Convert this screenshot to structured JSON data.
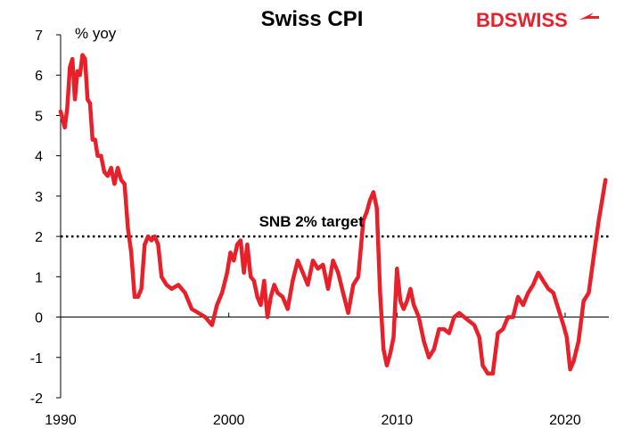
{
  "chart_data": {
    "type": "line",
    "title": "Swiss CPI",
    "ylabel": "% yoy",
    "xlabel": "",
    "xlim": [
      1990,
      2022.6
    ],
    "ylim": [
      -2,
      7
    ],
    "yticks": [
      -2,
      -1,
      0,
      1,
      2,
      3,
      4,
      5,
      6,
      7
    ],
    "xticks": [
      1990,
      2000,
      2010,
      2020
    ],
    "grid": false,
    "legend": "none",
    "annotations": [
      {
        "text": "SNB 2% target",
        "x": 2001.8,
        "y": 2.25
      }
    ],
    "reference_lines": [
      {
        "y": 2,
        "style": "dotted",
        "color": "#000000"
      }
    ],
    "series": [
      {
        "color": "#e8202a",
        "x": [
          1990.0,
          1990.25,
          1990.4,
          1990.55,
          1990.7,
          1990.85,
          1991.0,
          1991.15,
          1991.3,
          1991.45,
          1991.6,
          1991.75,
          1991.9,
          1992.05,
          1992.2,
          1992.4,
          1992.6,
          1992.8,
          1993.0,
          1993.2,
          1993.4,
          1993.6,
          1993.8,
          1994.0,
          1994.2,
          1994.4,
          1994.6,
          1994.8,
          1995.0,
          1995.2,
          1995.4,
          1995.6,
          1995.8,
          1996.0,
          1996.3,
          1996.6,
          1997.0,
          1997.4,
          1997.8,
          1998.2,
          1998.6,
          1999.0,
          1999.3,
          1999.6,
          1999.9,
          2000.1,
          2000.3,
          2000.5,
          2000.7,
          2000.9,
          2001.1,
          2001.3,
          2001.5,
          2001.7,
          2001.9,
          2002.1,
          2002.3,
          2002.5,
          2002.7,
          2002.9,
          2003.2,
          2003.5,
          2003.8,
          2004.1,
          2004.4,
          2004.7,
          2005.0,
          2005.3,
          2005.6,
          2005.9,
          2006.2,
          2006.5,
          2006.8,
          2007.1,
          2007.4,
          2007.7,
          2008.0,
          2008.2,
          2008.4,
          2008.6,
          2008.8,
          2009.0,
          2009.2,
          2009.4,
          2009.6,
          2009.8,
          2010.0,
          2010.2,
          2010.4,
          2010.6,
          2010.8,
          2011.0,
          2011.3,
          2011.6,
          2011.9,
          2012.2,
          2012.5,
          2012.8,
          2013.1,
          2013.4,
          2013.7,
          2014.0,
          2014.3,
          2014.6,
          2014.9,
          2015.1,
          2015.4,
          2015.7,
          2016.0,
          2016.3,
          2016.6,
          2016.9,
          2017.2,
          2017.5,
          2017.8,
          2018.1,
          2018.4,
          2018.7,
          2019.0,
          2019.3,
          2019.6,
          2019.9,
          2020.1,
          2020.3,
          2020.5,
          2020.8,
          2021.1,
          2021.4,
          2021.7,
          2022.0,
          2022.2,
          2022.4
        ],
        "y": [
          5.1,
          4.7,
          5.2,
          6.2,
          6.4,
          5.4,
          6.1,
          6.0,
          6.5,
          6.4,
          5.4,
          5.3,
          4.4,
          4.4,
          4.0,
          4.0,
          3.6,
          3.5,
          3.7,
          3.3,
          3.7,
          3.4,
          3.3,
          2.2,
          1.6,
          0.5,
          0.5,
          0.7,
          1.8,
          2.0,
          1.9,
          2.0,
          1.8,
          1.0,
          0.8,
          0.7,
          0.8,
          0.6,
          0.2,
          0.1,
          0.0,
          -0.2,
          0.3,
          0.6,
          1.1,
          1.6,
          1.4,
          1.8,
          1.9,
          1.1,
          1.8,
          1.0,
          0.9,
          0.5,
          0.3,
          0.9,
          0.0,
          0.5,
          0.8,
          0.6,
          0.5,
          0.2,
          0.9,
          1.4,
          1.1,
          0.8,
          1.4,
          1.2,
          1.3,
          0.7,
          1.4,
          1.1,
          0.6,
          0.1,
          0.8,
          1.0,
          2.4,
          2.6,
          2.9,
          3.1,
          2.7,
          0.6,
          -0.8,
          -1.2,
          -0.9,
          -0.5,
          1.2,
          0.4,
          0.2,
          0.4,
          0.7,
          0.3,
          0.0,
          -0.6,
          -1.0,
          -0.8,
          -0.3,
          -0.3,
          -0.4,
          0.0,
          0.1,
          0.0,
          -0.1,
          -0.2,
          -0.5,
          -1.2,
          -1.4,
          -1.4,
          -0.4,
          -0.3,
          0.0,
          0.0,
          0.5,
          0.3,
          0.6,
          0.8,
          1.1,
          0.9,
          0.7,
          0.6,
          0.2,
          -0.2,
          -0.5,
          -1.3,
          -1.1,
          -0.6,
          0.4,
          0.6,
          1.5,
          2.4,
          2.9,
          3.4
        ]
      }
    ]
  },
  "logo": {
    "text": "BDSWISS"
  }
}
